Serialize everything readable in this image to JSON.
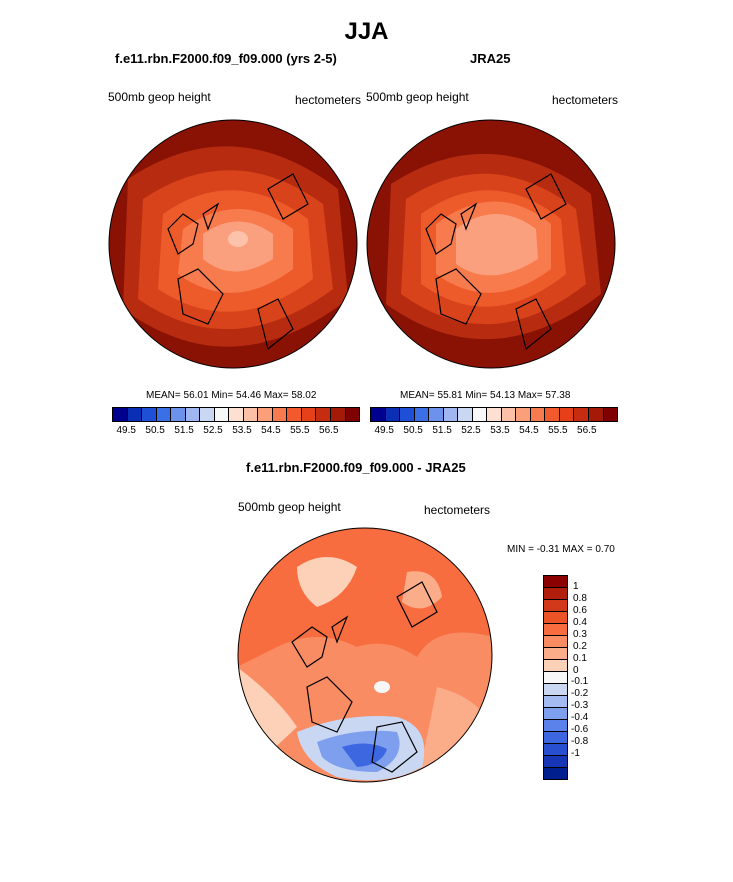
{
  "title": "JJA",
  "panels": [
    {
      "title": "f.e11.rbn.F2000.f09_f09.000 (yrs 2-5)",
      "left_label": "500mb geop height",
      "right_label": "hectometers",
      "stats": "MEAN=  56.01  Min=  54.46  Max=  58.02"
    },
    {
      "title": "JRA25",
      "left_label": "500mb geop height",
      "right_label": "hectometers",
      "stats": "MEAN=  55.81  Min=  54.13  Max=  57.38"
    }
  ],
  "top_colorbar": {
    "colors": [
      "#00008f",
      "#0a2fb5",
      "#1f4fd6",
      "#3b6fe6",
      "#6d92ec",
      "#9fb6f0",
      "#c9d7f3",
      "#f7f7f7",
      "#fde0d2",
      "#fcc0a6",
      "#fb9f7b",
      "#f87b50",
      "#f25a2d",
      "#e5401a",
      "#c62c0f",
      "#a31a07",
      "#7f0000"
    ],
    "ticks": [
      "49.5",
      "50.5",
      "51.5",
      "52.5",
      "53.5",
      "54.5",
      "55.5",
      "56.5"
    ]
  },
  "difference": {
    "title": "f.e11.rbn.F2000.f09_f09.000 - JRA25",
    "left_label": "500mb geop height",
    "right_label": "hectometers",
    "stats": "MIN =  -0.31 MAX =   0.70"
  },
  "diff_colorbar": {
    "colors": [
      "#8b0000",
      "#b21e0d",
      "#d2391b",
      "#ec5427",
      "#f76d40",
      "#f98c62",
      "#fbad8a",
      "#fdd0b8",
      "#f7f7f7",
      "#c9d7f3",
      "#a3bbf1",
      "#7e9eee",
      "#5b82ea",
      "#3c67e0",
      "#274fd0",
      "#1636b5",
      "#001f8f"
    ],
    "ticks": [
      "1",
      "0.8",
      "0.6",
      "0.4",
      "0.3",
      "0.2",
      "0.1",
      "0",
      "-0.1",
      "-0.2",
      "-0.3",
      "-0.4",
      "-0.6",
      "-0.8",
      "-1"
    ]
  }
}
